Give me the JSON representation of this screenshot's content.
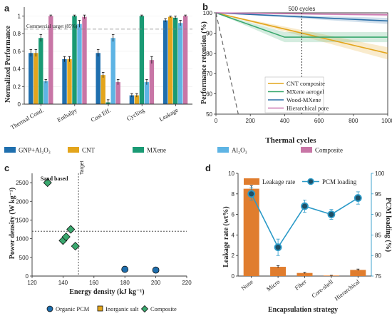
{
  "panel_labels": {
    "a": "a",
    "b": "b",
    "c": "c",
    "d": "d"
  },
  "chart_data": [
    {
      "panel": "a",
      "type": "bar",
      "ylabel": "Normalized Performance",
      "ylim": [
        0,
        1.1
      ],
      "yticks": [
        "0",
        "0.2",
        "0.4",
        "0.6",
        "0.8",
        "1"
      ],
      "categories": [
        "Thermal Cond.",
        "Enthalpy",
        "Cost Eff.",
        "Cycling",
        "Leakage"
      ],
      "reference_line": {
        "value": 0.85,
        "label": "Commercial target (85%)"
      },
      "series": [
        {
          "name": "GNP+Al₂O₃",
          "color": "#1f6fae",
          "values": [
            0.58,
            0.51,
            0.58,
            0.1,
            0.95
          ],
          "errors": [
            0.04,
            0.03,
            0.04,
            0.02,
            0.02
          ]
        },
        {
          "name": "CNT",
          "color": "#e3a51c",
          "values": [
            0.58,
            0.51,
            0.33,
            0.1,
            0.99
          ],
          "errors": [
            0.04,
            0.03,
            0.03,
            0.02,
            0.01
          ]
        },
        {
          "name": "MXene",
          "color": "#1a9a74",
          "values": [
            0.75,
            1.0,
            0.02,
            1.0,
            0.98
          ],
          "errors": [
            0.04,
            0.01,
            0.03,
            0.01,
            0.02
          ]
        },
        {
          "name": "Al₂O₃",
          "color": "#5eb4e4",
          "values": [
            0.26,
            0.91,
            0.75,
            0.25,
            0.92
          ],
          "errors": [
            0.02,
            0.04,
            0.04,
            0.03,
            0.03
          ]
        },
        {
          "name": "Composite",
          "color": "#c876a6",
          "values": [
            1.0,
            0.99,
            0.25,
            0.5,
            1.0
          ],
          "errors": [
            0.01,
            0.02,
            0.03,
            0.04,
            0.01
          ]
        }
      ]
    },
    {
      "panel": "b",
      "type": "line",
      "xlabel": "Thermal cycles",
      "ylabel": "Performance retention (%)",
      "xlim": [
        0,
        1000
      ],
      "ylim": [
        50,
        100
      ],
      "xticks": [
        "0",
        "200",
        "400",
        "600",
        "800",
        "1000"
      ],
      "yticks": [
        "50",
        "60",
        "70",
        "80",
        "90",
        "100"
      ],
      "annotation": {
        "x": 500,
        "label": "500 cycles"
      },
      "series": [
        {
          "name": "CNT composite",
          "color": "#e3a51c",
          "x": [
            0,
            1000
          ],
          "y": [
            100,
            80
          ],
          "band": 3
        },
        {
          "name": "MXene aerogel",
          "color": "#3aa86e",
          "x": [
            0,
            400,
            1000
          ],
          "y": [
            100,
            88,
            88
          ],
          "band": 2.5
        },
        {
          "name": "Wood-MXene",
          "color": "#2a6fa8",
          "x": [
            0,
            1000
          ],
          "y": [
            100,
            96
          ],
          "band": 1.5
        },
        {
          "name": "Hierarchical pore",
          "color": "#cc77b0",
          "x": [
            0,
            1000
          ],
          "y": [
            100,
            99
          ],
          "band": 0.8
        }
      ],
      "extra_line": {
        "x": [
          0,
          130
        ],
        "y": [
          100,
          50
        ]
      }
    },
    {
      "panel": "c",
      "type": "scatter",
      "xlabel": "Energy  density  (kJ kg⁻¹)",
      "ylabel": "Power  density  (W kg⁻¹)",
      "xlim": [
        120,
        220
      ],
      "ylim": [
        0,
        2750
      ],
      "xticks": [
        "120",
        "140",
        "160",
        "180",
        "200",
        "220"
      ],
      "yticks": [
        "0",
        "500",
        "1000",
        "1500",
        "2000",
        "2500"
      ],
      "hline": {
        "value": 1200
      },
      "vline": {
        "value": 150,
        "label": "Target"
      },
      "point_label": "Sand based",
      "series": [
        {
          "name": "Organic PCM",
          "color": "#1f6fae",
          "marker": "circle",
          "points": [
            [
              180,
              180
            ],
            [
              200,
              160
            ]
          ]
        },
        {
          "name": "Inorganic salt",
          "color": "#e3a51c",
          "marker": "square",
          "points": []
        },
        {
          "name": "Composite",
          "color": "#3aa86e",
          "marker": "diamond",
          "points": [
            [
              130,
              2500
            ],
            [
              140,
              950
            ],
            [
              142,
              1050
            ],
            [
              145,
              1250
            ],
            [
              148,
              800
            ]
          ]
        }
      ]
    },
    {
      "panel": "d",
      "type": "bar+line",
      "xlabel": "Encapsulation strategy",
      "ylabel_left": "Leakage rate (wt%)",
      "ylabel_right": "PCM loading (%)",
      "categories": [
        "None",
        "Micro",
        "Fiber",
        "Core-shell",
        "Hierarchical"
      ],
      "ylim_left": [
        0,
        10
      ],
      "ylim_right": [
        75,
        100
      ],
      "yticks_left": [
        "0",
        "2",
        "4",
        "6",
        "8",
        "10"
      ],
      "yticks_right": [
        "75",
        "80",
        "85",
        "90",
        "95",
        "100"
      ],
      "bars": {
        "name": "Leakage rate",
        "color": "#e07d2e",
        "values": [
          8.5,
          0.9,
          0.3,
          0.05,
          0.6
        ],
        "errors": [
          0.3,
          0.1,
          0.05,
          0.02,
          0.08
        ]
      },
      "line": {
        "name": "PCM loading",
        "color": "#2b9ac8",
        "values": [
          95,
          82,
          92,
          90,
          94
        ],
        "errors": [
          1.5,
          2.0,
          1.5,
          1.2,
          1.5
        ]
      }
    }
  ]
}
